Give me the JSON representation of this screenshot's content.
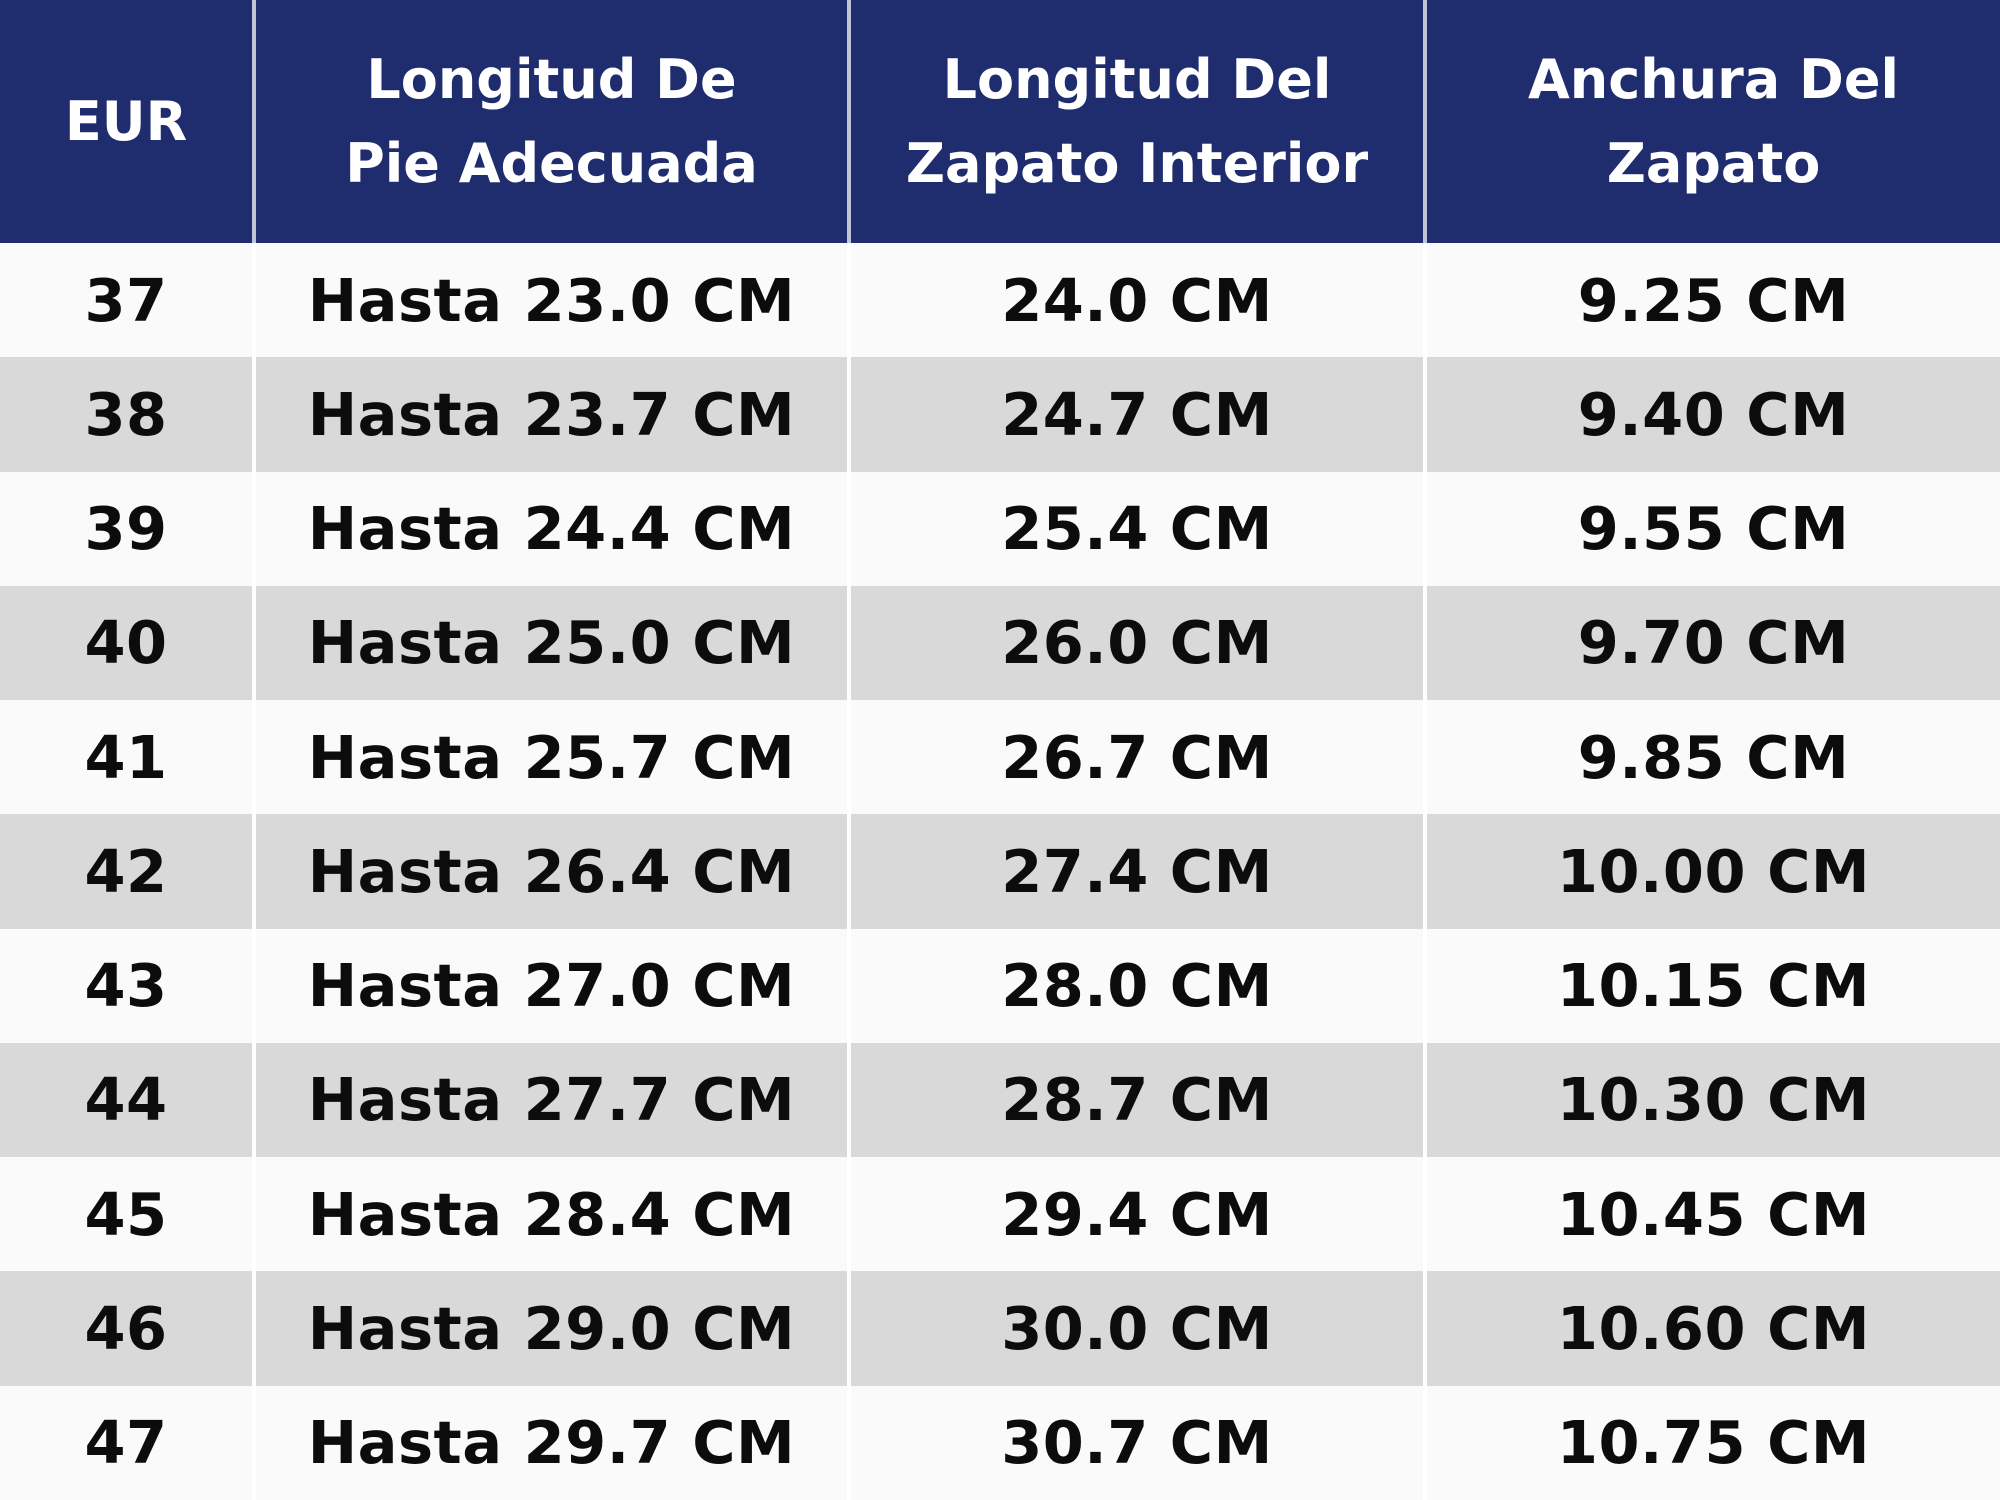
{
  "colors": {
    "header_bg": "#1f2c6d",
    "header_text": "#ffffff",
    "row_light": "#fafafa",
    "row_gray": "#d9d9d9",
    "body_text": "#0c0c0c",
    "divider": "#ffffff"
  },
  "table": {
    "headers": [
      {
        "label": "EUR"
      },
      {
        "label": "Longitud De\nPie Adecuada"
      },
      {
        "label": "Longitud Del\nZapato Interior"
      },
      {
        "label": "Anchura Del\nZapato"
      }
    ]
  },
  "chart_data": {
    "type": "table",
    "columns": [
      "EUR",
      "Longitud De Pie Adecuada",
      "Longitud Del Zapato Interior",
      "Anchura Del Zapato"
    ],
    "rows": [
      [
        "37",
        "Hasta 23.0 CM",
        "24.0 CM",
        "9.25 CM"
      ],
      [
        "38",
        "Hasta 23.7 CM",
        "24.7 CM",
        "9.40 CM"
      ],
      [
        "39",
        "Hasta 24.4 CM",
        "25.4 CM",
        "9.55 CM"
      ],
      [
        "40",
        "Hasta 25.0 CM",
        "26.0 CM",
        "9.70 CM"
      ],
      [
        "41",
        "Hasta 25.7 CM",
        "26.7 CM",
        "9.85 CM"
      ],
      [
        "42",
        "Hasta 26.4 CM",
        "27.4 CM",
        "10.00 CM"
      ],
      [
        "43",
        "Hasta 27.0 CM",
        "28.0 CM",
        "10.15 CM"
      ],
      [
        "44",
        "Hasta 27.7 CM",
        "28.7 CM",
        "10.30 CM"
      ],
      [
        "45",
        "Hasta 28.4 CM",
        "29.4 CM",
        "10.45 CM"
      ],
      [
        "46",
        "Hasta 29.0 CM",
        "30.0 CM",
        "10.60 CM"
      ],
      [
        "47",
        "Hasta 29.7 CM",
        "30.7 CM",
        "10.75 CM"
      ]
    ],
    "numeric": {
      "eur": [
        37,
        38,
        39,
        40,
        41,
        42,
        43,
        44,
        45,
        46,
        47
      ],
      "foot_length_max_cm": [
        23.0,
        23.7,
        24.4,
        25.0,
        25.7,
        26.4,
        27.0,
        27.7,
        28.4,
        29.0,
        29.7
      ],
      "inner_shoe_length_cm": [
        24.0,
        24.7,
        25.4,
        26.0,
        26.7,
        27.4,
        28.0,
        28.7,
        29.4,
        30.0,
        30.7
      ],
      "shoe_width_cm": [
        9.25,
        9.4,
        9.55,
        9.7,
        9.85,
        10.0,
        10.15,
        10.3,
        10.45,
        10.6,
        10.75
      ]
    },
    "units": "CM",
    "layout": {
      "header_position": "top",
      "striped": true,
      "grid": "column-dividers-only"
    }
  }
}
